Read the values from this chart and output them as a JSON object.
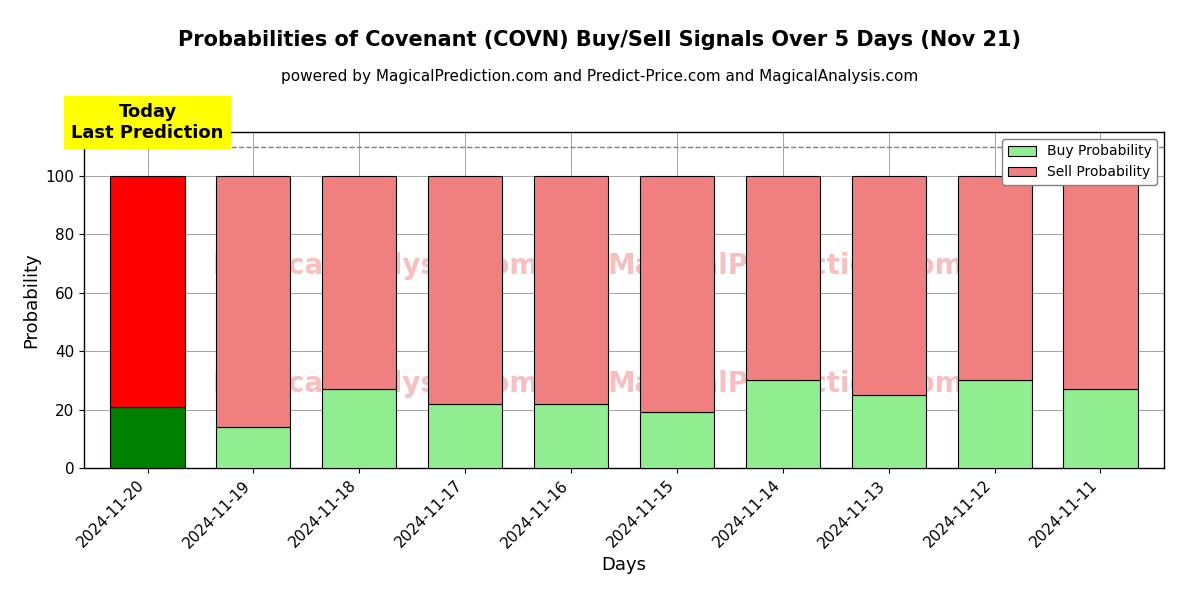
{
  "title": "Probabilities of Covenant (COVN) Buy/Sell Signals Over 5 Days (Nov 21)",
  "subtitle": "powered by MagicalPrediction.com and Predict-Price.com and MagicalAnalysis.com",
  "xlabel": "Days",
  "ylabel": "Probability",
  "dates": [
    "2024-11-20",
    "2024-11-19",
    "2024-11-18",
    "2024-11-17",
    "2024-11-16",
    "2024-11-15",
    "2024-11-14",
    "2024-11-13",
    "2024-11-12",
    "2024-11-11"
  ],
  "buy_probs": [
    21,
    14,
    27,
    22,
    22,
    19,
    30,
    25,
    30,
    27
  ],
  "sell_probs": [
    79,
    86,
    73,
    78,
    78,
    81,
    70,
    75,
    70,
    73
  ],
  "buy_color_today": "#008000",
  "sell_color_today": "#FF0000",
  "buy_color_other": "#90EE90",
  "sell_color_other": "#F08080",
  "today_label": "Today\nLast Prediction",
  "today_label_bg": "#FFFF00",
  "legend_buy_label": "Buy Probability",
  "legend_sell_label": "Sell Probability",
  "ylim": [
    0,
    115
  ],
  "yticks": [
    0,
    20,
    40,
    60,
    80,
    100
  ],
  "dashed_line_y": 110,
  "bar_edge_color": "#000000",
  "bar_linewidth": 0.8,
  "title_fontsize": 15,
  "subtitle_fontsize": 11,
  "axis_label_fontsize": 13,
  "tick_fontsize": 11
}
